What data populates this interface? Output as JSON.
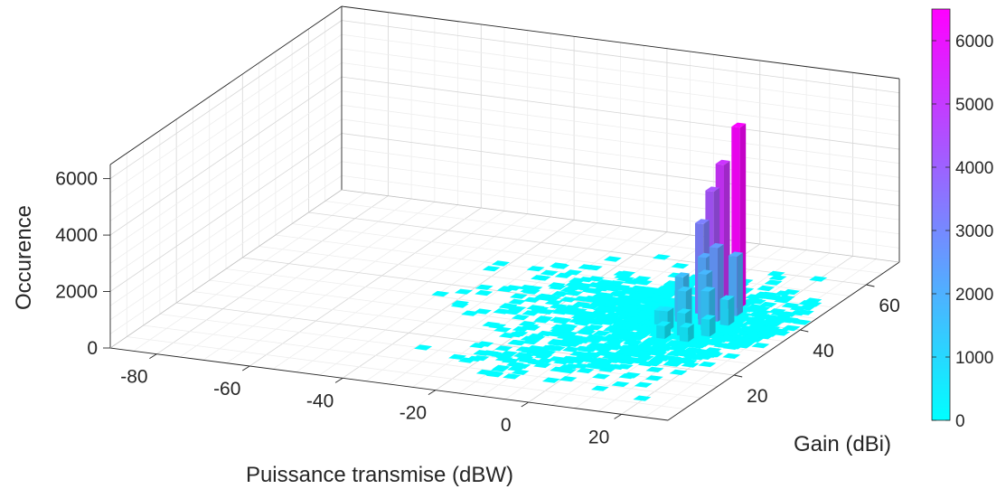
{
  "chart_data": {
    "type": "bar3d",
    "xlabel": "Puissance transmise (dBW)",
    "ylabel": "Gain (dBi)",
    "zlabel": "Occurence",
    "xlim": [
      -90,
      30
    ],
    "ylim": [
      0,
      70
    ],
    "zlim": [
      0,
      6500
    ],
    "xticks": [
      -80,
      -60,
      -40,
      -20,
      0,
      20
    ],
    "yticks": [
      20,
      40,
      60
    ],
    "zticks": [
      0,
      2000,
      4000,
      6000
    ],
    "colorbar": {
      "ticks": [
        0,
        1000,
        2000,
        3000,
        4000,
        5000,
        6000
      ],
      "range": [
        0,
        6500
      ],
      "colors": [
        "#00ffff",
        "#ff00ff"
      ],
      "colormap": "cool"
    },
    "bars": [
      {
        "x": 12.5,
        "y": 46,
        "z": 6400
      },
      {
        "x": 10.5,
        "y": 44,
        "z": 5200
      },
      {
        "x": 9.0,
        "y": 43,
        "z": 4300
      },
      {
        "x": 7.5,
        "y": 42,
        "z": 3200
      },
      {
        "x": 12.0,
        "y": 40,
        "z": 2600
      },
      {
        "x": 9.5,
        "y": 40,
        "z": 2200
      },
      {
        "x": 14.0,
        "y": 43,
        "z": 2100
      },
      {
        "x": 6.0,
        "y": 38,
        "z": 1600
      },
      {
        "x": 11.0,
        "y": 38,
        "z": 1800
      },
      {
        "x": 8.0,
        "y": 36,
        "z": 1300
      },
      {
        "x": 13.0,
        "y": 36,
        "z": 1400
      },
      {
        "x": 4.5,
        "y": 40,
        "z": 900
      },
      {
        "x": 15.0,
        "y": 39,
        "z": 900
      },
      {
        "x": 5.5,
        "y": 34,
        "z": 700
      },
      {
        "x": 10.0,
        "y": 33,
        "z": 800
      },
      {
        "x": 14.5,
        "y": 34,
        "z": 600
      },
      {
        "x": 3.0,
        "y": 36,
        "z": 500
      },
      {
        "x": 7.0,
        "y": 31,
        "z": 450
      },
      {
        "x": 12.0,
        "y": 31,
        "z": 500
      }
    ]
  }
}
